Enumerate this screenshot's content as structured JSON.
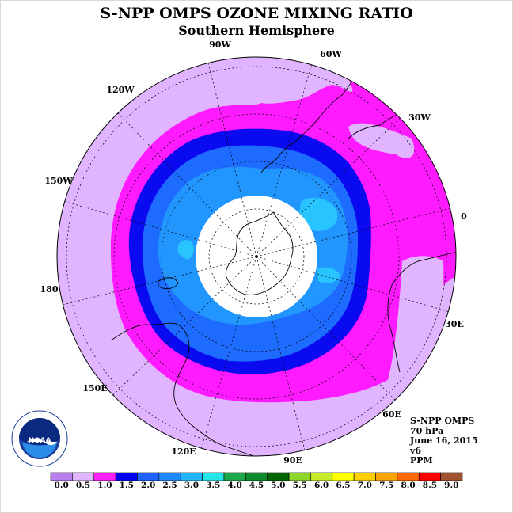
{
  "header": {
    "title": "S-NPP OMPS OZONE MIXING RATIO",
    "subtitle": "Southern Hemisphere"
  },
  "longitude_labels": [
    "90W",
    "60W",
    "30W",
    "0",
    "30E",
    "60E",
    "90E",
    "120E",
    "150E",
    "180",
    "150W",
    "120W"
  ],
  "info": {
    "line1": "S-NPP OMPS",
    "line2": "70 hPa",
    "line3": "June 16, 2015",
    "line4": "v6",
    "line5": "PPM"
  },
  "logo": {
    "text": "NOAA",
    "ring_text": "NATIONAL OCEANIC AND ATMOSPHERIC ADMINISTRATION · U.S. DEPARTMENT OF COMMERCE"
  },
  "colorbar": {
    "labels": [
      "0.0",
      "0.5",
      "1.0",
      "1.5",
      "2.0",
      "2.5",
      "3.0",
      "3.5",
      "4.0",
      "4.5",
      "5.0",
      "5.5",
      "6.0",
      "6.5",
      "7.0",
      "7.5",
      "8.0",
      "8.5",
      "9.0"
    ],
    "colors": [
      "#b87ff0",
      "#dfb6ff",
      "#ff20ff",
      "#0000ee",
      "#1e62ff",
      "#1f8aff",
      "#22b6ff",
      "#25e6e6",
      "#1aa84a",
      "#0f8a2a",
      "#006400",
      "#8cd62a",
      "#c4ec2a",
      "#ffff00",
      "#ffd000",
      "#ffa500",
      "#ff6a00",
      "#ff0000",
      "#a0522d"
    ]
  },
  "map_colors": {
    "band_0.5_1.0": "#e0b4ff",
    "band_1.0_1.5": "#ff1aff",
    "band_1.5_2.0": "#0a0af0",
    "band_2.0_2.5": "#1e6cff",
    "band_2.5_3.0": "#2196ff",
    "band_3.0_3.5": "#27c4ff",
    "polar_night_mask": "#ffffff"
  }
}
